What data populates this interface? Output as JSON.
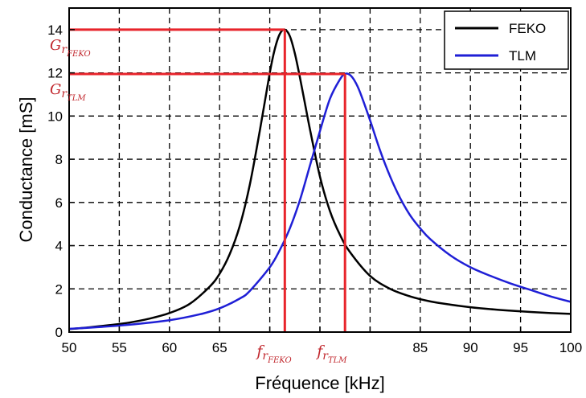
{
  "chart_data": {
    "type": "line",
    "title": "",
    "xlabel": "Fréquence [kHz]",
    "ylabel": "Conductance [mS]",
    "xlim": [
      50,
      100
    ],
    "ylim": [
      0,
      15
    ],
    "xticks": [
      50,
      55,
      60,
      65,
      70,
      75,
      80,
      85,
      90,
      95,
      100
    ],
    "yticks": [
      0,
      2,
      4,
      6,
      8,
      10,
      12,
      14
    ],
    "xtick_labels": [
      "50",
      "55",
      "60",
      "65",
      "",
      "",
      "",
      "85",
      "90",
      "95",
      "100"
    ],
    "grid": true,
    "legend_position": "top-right",
    "series": [
      {
        "name": "FEKO",
        "color": "#000000",
        "x": [
          50,
          52,
          54,
          56,
          58,
          60,
          62,
          64,
          65,
          66,
          67,
          68,
          69,
          70,
          70.5,
          71,
          71.5,
          72,
          72.5,
          73,
          73.5,
          74,
          75,
          76,
          77,
          78,
          80,
          82,
          84,
          86,
          88,
          90,
          92,
          94,
          96,
          98,
          100
        ],
        "values": [
          0.14,
          0.22,
          0.32,
          0.44,
          0.62,
          0.88,
          1.3,
          2.1,
          2.7,
          3.6,
          4.9,
          6.8,
          9.3,
          12.0,
          13.1,
          13.8,
          14.0,
          13.7,
          12.9,
          11.8,
          10.6,
          9.4,
          7.2,
          5.6,
          4.5,
          3.7,
          2.6,
          2.0,
          1.65,
          1.42,
          1.27,
          1.15,
          1.06,
          0.99,
          0.93,
          0.88,
          0.84
        ]
      },
      {
        "name": "TLM",
        "color": "#1f1fd6",
        "x": [
          50,
          55,
          60,
          63,
          65,
          67,
          68,
          70,
          71,
          72,
          73,
          74,
          75,
          76,
          77,
          77.5,
          78,
          78.5,
          79,
          80,
          81,
          82,
          83,
          84,
          85,
          86,
          88,
          90,
          92,
          94,
          96,
          98,
          100
        ],
        "values": [
          0.15,
          0.3,
          0.55,
          0.82,
          1.1,
          1.55,
          1.9,
          3.0,
          3.8,
          4.8,
          6.1,
          7.7,
          9.3,
          10.8,
          11.7,
          11.95,
          11.9,
          11.6,
          11.1,
          9.8,
          8.4,
          7.2,
          6.2,
          5.4,
          4.8,
          4.3,
          3.55,
          3.0,
          2.6,
          2.25,
          1.95,
          1.65,
          1.4
        ]
      }
    ],
    "annotations": {
      "line_color": "#e8242b",
      "label_color": "#c1272d",
      "peaks": [
        {
          "series": "FEKO",
          "x": 71.5,
          "y": 14.0,
          "g_main": "G",
          "g_sub": "r",
          "g_subsub": "FEKO",
          "f_main": "f",
          "f_sub": "r",
          "f_subsub": "FEKO"
        },
        {
          "series": "TLM",
          "x": 77.5,
          "y": 11.95,
          "g_main": "G",
          "g_sub": "r",
          "g_subsub": "TLM",
          "f_main": "f",
          "f_sub": "r",
          "f_subsub": "TLM"
        }
      ]
    }
  }
}
